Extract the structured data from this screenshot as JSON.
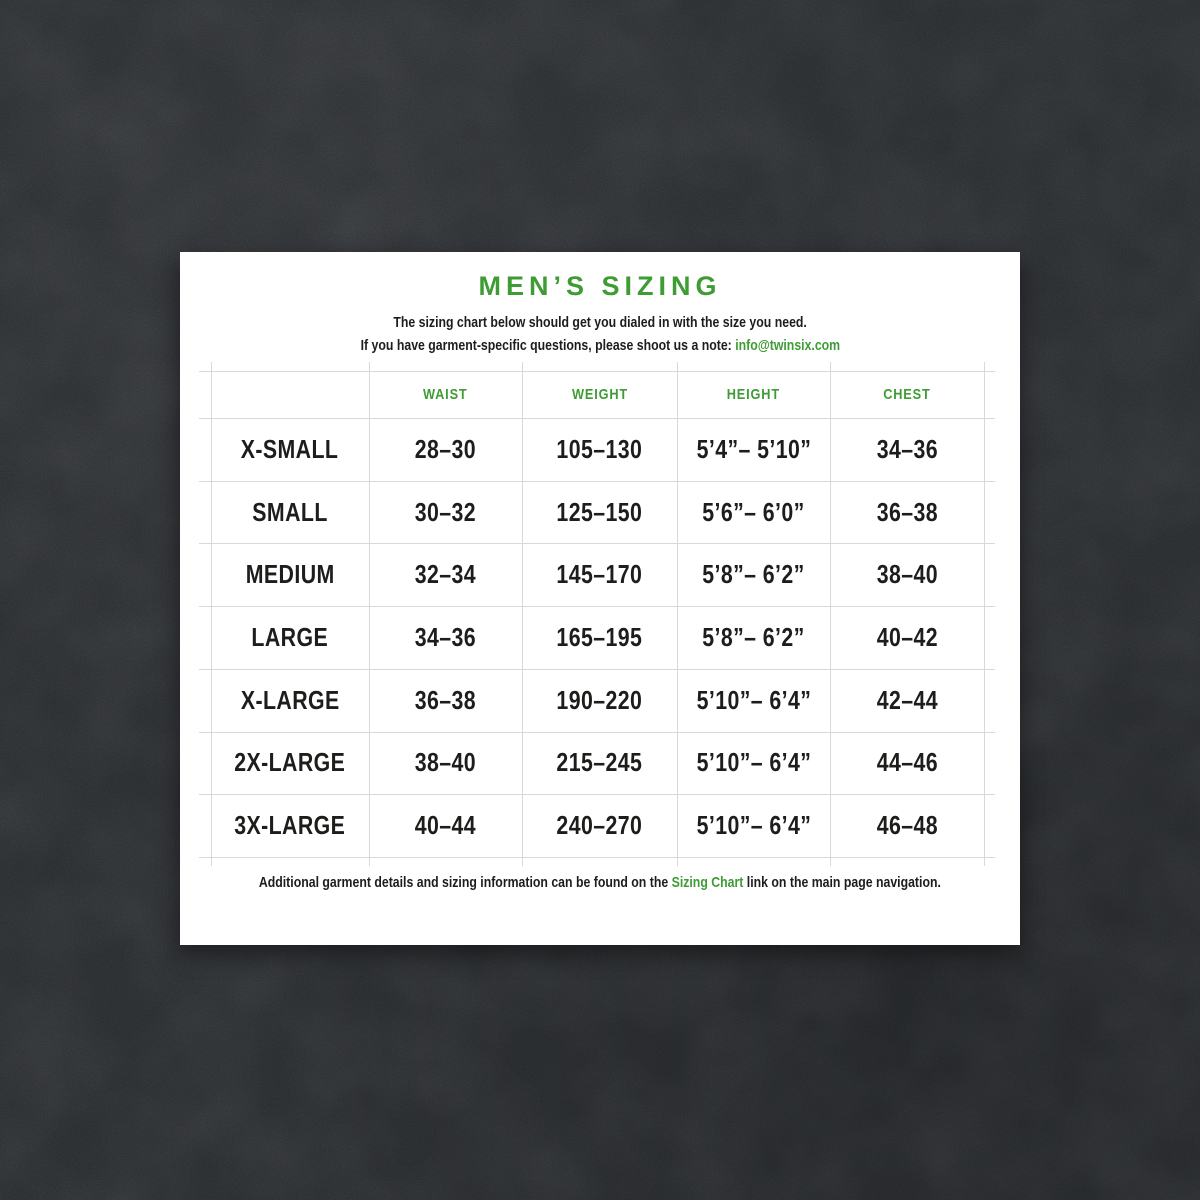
{
  "page": {
    "title": "MEN’S SIZING",
    "subtitle_line1": "The sizing chart below should get you dialed in with the size you need.",
    "subtitle_line2_prefix": "If you have garment-specific questions, please shoot us a note: ",
    "subtitle_email": "info@twinsix.com",
    "footer_prefix": "Additional garment details and sizing information can be found on the ",
    "footer_link": "Sizing Chart",
    "footer_suffix": " link on the main page navigation."
  },
  "colors": {
    "accent_green": "#3f9c35",
    "text_black": "#1d1d1b",
    "card_background": "#ffffff",
    "wall_background": "#34373b",
    "grid_line": "#d9d9d9"
  },
  "chart_data": {
    "type": "table",
    "columns": [
      "",
      "WAIST",
      "WEIGHT",
      "HEIGHT",
      "CHEST"
    ],
    "rows": [
      [
        "X-SMALL",
        "28–30",
        "105–130",
        "5’4”– 5’10”",
        "34–36"
      ],
      [
        "SMALL",
        "30–32",
        "125–150",
        "5’6”– 6’0”",
        "36–38"
      ],
      [
        "MEDIUM",
        "32–34",
        "145–170",
        "5’8”– 6’2”",
        "38–40"
      ],
      [
        "LARGE",
        "34–36",
        "165–195",
        "5’8”– 6’2”",
        "40–42"
      ],
      [
        "X-LARGE",
        "36–38",
        "190–220",
        "5’10”– 6’4”",
        "42–44"
      ],
      [
        "2X-LARGE",
        "38–40",
        "215–245",
        "5’10”– 6’4”",
        "44–46"
      ],
      [
        "3X-LARGE",
        "40–44",
        "240–270",
        "5’10”– 6’4”",
        "46–48"
      ]
    ]
  }
}
